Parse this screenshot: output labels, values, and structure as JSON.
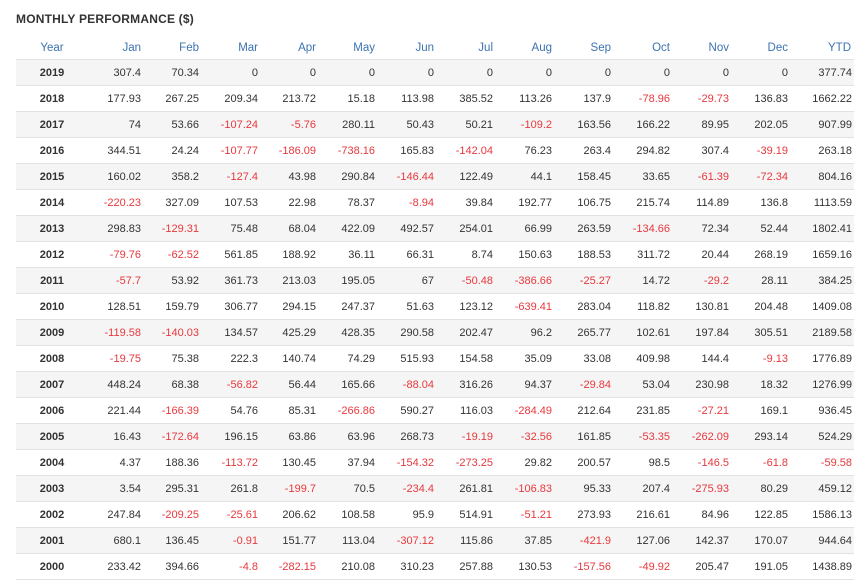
{
  "title": "MONTHLY PERFORMANCE ($)",
  "colors": {
    "header": "#3d73b0",
    "negative": "#e8383d",
    "stripe": "#f5f5f5"
  },
  "columns": [
    "Year",
    "Jan",
    "Feb",
    "Mar",
    "Apr",
    "May",
    "Jun",
    "Jul",
    "Aug",
    "Sep",
    "Oct",
    "Nov",
    "Dec",
    "YTD"
  ],
  "rows": [
    [
      "2019",
      "307.4",
      "70.34",
      "0",
      "0",
      "0",
      "0",
      "0",
      "0",
      "0",
      "0",
      "0",
      "0",
      "377.74"
    ],
    [
      "2018",
      "177.93",
      "267.25",
      "209.34",
      "213.72",
      "15.18",
      "113.98",
      "385.52",
      "113.26",
      "137.9",
      "-78.96",
      "-29.73",
      "136.83",
      "1662.22"
    ],
    [
      "2017",
      "74",
      "53.66",
      "-107.24",
      "-5.76",
      "280.11",
      "50.43",
      "50.21",
      "-109.2",
      "163.56",
      "166.22",
      "89.95",
      "202.05",
      "907.99"
    ],
    [
      "2016",
      "344.51",
      "24.24",
      "-107.77",
      "-186.09",
      "-738.16",
      "165.83",
      "-142.04",
      "76.23",
      "263.4",
      "294.82",
      "307.4",
      "-39.19",
      "263.18"
    ],
    [
      "2015",
      "160.02",
      "358.2",
      "-127.4",
      "43.98",
      "290.84",
      "-146.44",
      "122.49",
      "44.1",
      "158.45",
      "33.65",
      "-61.39",
      "-72.34",
      "804.16"
    ],
    [
      "2014",
      "-220.23",
      "327.09",
      "107.53",
      "22.98",
      "78.37",
      "-8.94",
      "39.84",
      "192.77",
      "106.75",
      "215.74",
      "114.89",
      "136.8",
      "1113.59"
    ],
    [
      "2013",
      "298.83",
      "-129.31",
      "75.48",
      "68.04",
      "422.09",
      "492.57",
      "254.01",
      "66.99",
      "263.59",
      "-134.66",
      "72.34",
      "52.44",
      "1802.41"
    ],
    [
      "2012",
      "-79.76",
      "-62.52",
      "561.85",
      "188.92",
      "36.11",
      "66.31",
      "8.74",
      "150.63",
      "188.53",
      "311.72",
      "20.44",
      "268.19",
      "1659.16"
    ],
    [
      "2011",
      "-57.7",
      "53.92",
      "361.73",
      "213.03",
      "195.05",
      "67",
      "-50.48",
      "-386.66",
      "-25.27",
      "14.72",
      "-29.2",
      "28.11",
      "384.25"
    ],
    [
      "2010",
      "128.51",
      "159.79",
      "306.77",
      "294.15",
      "247.37",
      "51.63",
      "123.12",
      "-639.41",
      "283.04",
      "118.82",
      "130.81",
      "204.48",
      "1409.08"
    ],
    [
      "2009",
      "-119.58",
      "-140.03",
      "134.57",
      "425.29",
      "428.35",
      "290.58",
      "202.47",
      "96.2",
      "265.77",
      "102.61",
      "197.84",
      "305.51",
      "2189.58"
    ],
    [
      "2008",
      "-19.75",
      "75.38",
      "222.3",
      "140.74",
      "74.29",
      "515.93",
      "154.58",
      "35.09",
      "33.08",
      "409.98",
      "144.4",
      "-9.13",
      "1776.89"
    ],
    [
      "2007",
      "448.24",
      "68.38",
      "-56.82",
      "56.44",
      "165.66",
      "-88.04",
      "316.26",
      "94.37",
      "-29.84",
      "53.04",
      "230.98",
      "18.32",
      "1276.99"
    ],
    [
      "2006",
      "221.44",
      "-166.39",
      "54.76",
      "85.31",
      "-266.86",
      "590.27",
      "116.03",
      "-284.49",
      "212.64",
      "231.85",
      "-27.21",
      "169.1",
      "936.45"
    ],
    [
      "2005",
      "16.43",
      "-172.64",
      "196.15",
      "63.86",
      "63.96",
      "268.73",
      "-19.19",
      "-32.56",
      "161.85",
      "-53.35",
      "-262.09",
      "293.14",
      "524.29"
    ],
    [
      "2004",
      "4.37",
      "188.36",
      "-113.72",
      "130.45",
      "37.94",
      "-154.32",
      "-273.25",
      "29.82",
      "200.57",
      "98.5",
      "-146.5",
      "-61.8",
      "-59.58"
    ],
    [
      "2003",
      "3.54",
      "295.31",
      "261.8",
      "-199.7",
      "70.5",
      "-234.4",
      "261.81",
      "-106.83",
      "95.33",
      "207.4",
      "-275.93",
      "80.29",
      "459.12"
    ],
    [
      "2002",
      "247.84",
      "-209.25",
      "-25.61",
      "206.62",
      "108.58",
      "95.9",
      "514.91",
      "-51.21",
      "273.93",
      "216.61",
      "84.96",
      "122.85",
      "1586.13"
    ],
    [
      "2001",
      "680.1",
      "136.45",
      "-0.91",
      "151.77",
      "113.04",
      "-307.12",
      "115.86",
      "37.85",
      "-421.9",
      "127.06",
      "142.37",
      "170.07",
      "944.64"
    ],
    [
      "2000",
      "233.42",
      "394.66",
      "-4.8",
      "-282.15",
      "210.08",
      "310.23",
      "257.88",
      "130.53",
      "-157.56",
      "-49.92",
      "205.47",
      "191.05",
      "1438.89"
    ]
  ]
}
